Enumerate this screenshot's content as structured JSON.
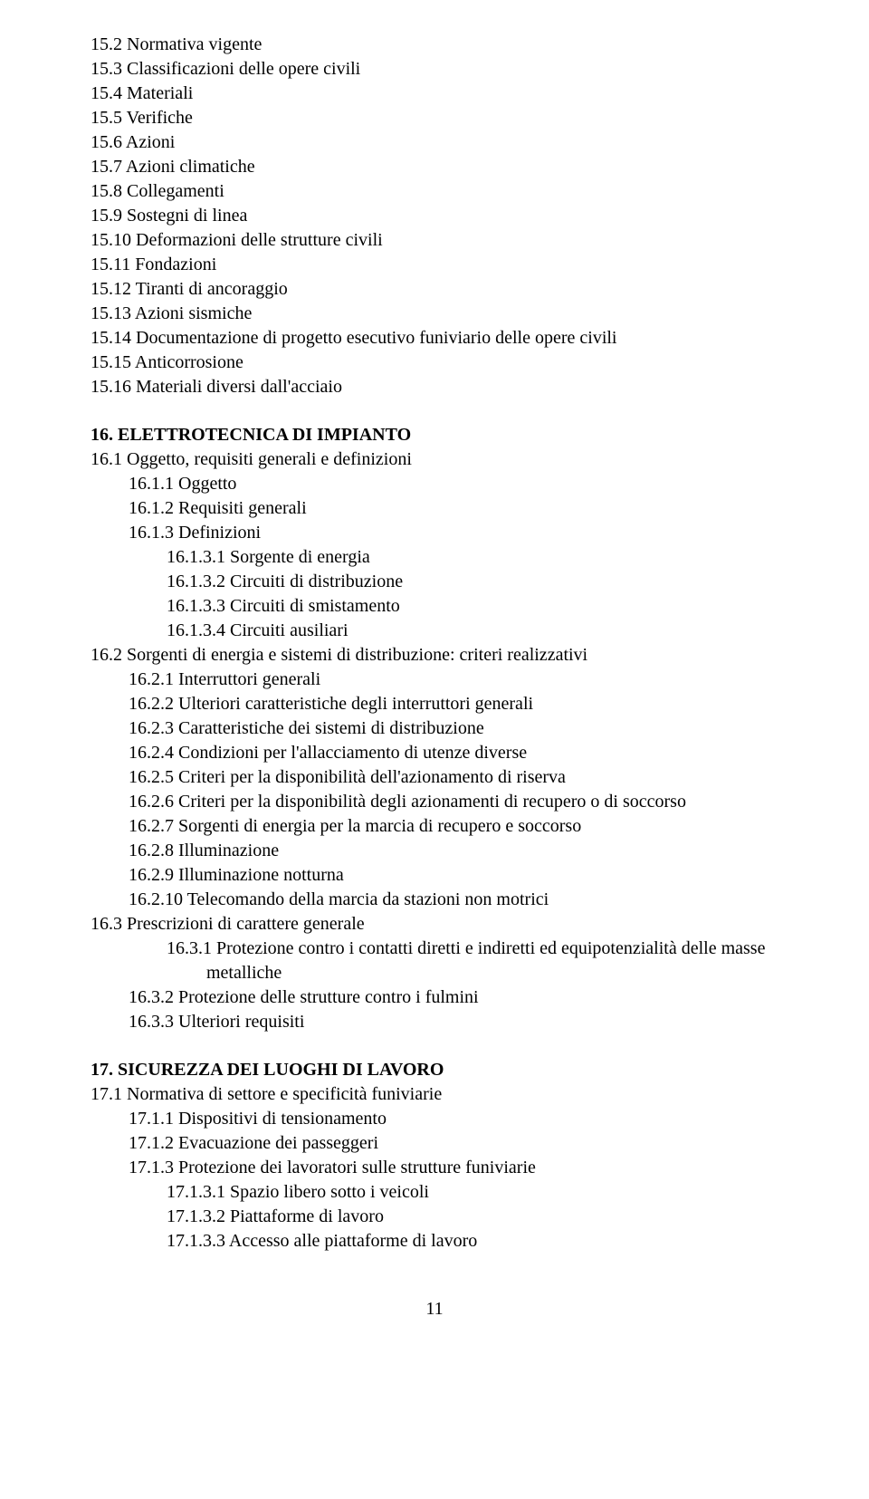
{
  "s15": {
    "items": [
      "15.2 Normativa vigente",
      "15.3 Classificazioni delle opere civili",
      "15.4 Materiali",
      "15.5 Verifiche",
      "15.6 Azioni",
      "15.7 Azioni climatiche",
      "15.8 Collegamenti",
      "15.9 Sostegni di linea",
      "15.10 Deformazioni delle strutture civili",
      "15.11 Fondazioni",
      "15.12 Tiranti di ancoraggio",
      "15.13 Azioni sismiche",
      "15.14 Documentazione di progetto esecutivo funiviario delle opere civili",
      "15.15 Anticorrosione",
      "15.16 Materiali diversi dall'acciaio"
    ]
  },
  "s16": {
    "heading": "16. ELETTROTECNICA DI IMPIANTO",
    "g1": {
      "title": "16.1 Oggetto, requisiti generali e definizioni",
      "sub": {
        "a": "16.1.1 Oggetto",
        "b": "16.1.2 Requisiti generali",
        "c": "16.1.3 Definizioni",
        "c1": "16.1.3.1 Sorgente di energia",
        "c2": "16.1.3.2 Circuiti di distribuzione",
        "c3": "16.1.3.3 Circuiti di smistamento",
        "c4": "16.1.3.4 Circuiti ausiliari"
      }
    },
    "g2": {
      "title": "16.2 Sorgenti di energia e sistemi di distribuzione: criteri realizzativi",
      "sub": {
        "a": "16.2.1 Interruttori generali",
        "b": "16.2.2 Ulteriori caratteristiche degli interruttori generali",
        "c": "16.2.3 Caratteristiche dei sistemi di distribuzione",
        "d": "16.2.4 Condizioni per l'allacciamento di utenze diverse",
        "e": "16.2.5 Criteri per la disponibilità dell'azionamento di riserva",
        "f": "16.2.6 Criteri per la disponibilità degli azionamenti di recupero o di soccorso",
        "g": "16.2.7 Sorgenti di energia per la marcia di recupero e soccorso",
        "h": "16.2.8 Illuminazione",
        "i": "16.2.9 Illuminazione notturna",
        "j": "16.2.10 Telecomando della marcia da stazioni non motrici"
      }
    },
    "g3": {
      "title": "16.3 Prescrizioni di carattere generale",
      "sub": {
        "a": "16.3.1 Protezione contro i contatti diretti e indiretti ed equipotenzialità delle masse metalliche",
        "b": "16.3.2 Protezione delle strutture contro i fulmini",
        "c": "16.3.3 Ulteriori requisiti"
      }
    }
  },
  "s17": {
    "heading": "17. SICUREZZA DEI LUOGHI DI LAVORO",
    "g1": {
      "title": "17.1 Normativa di settore e specificità funiviarie",
      "sub": {
        "a": "17.1.1 Dispositivi di tensionamento",
        "b": "17.1.2 Evacuazione dei passeggeri",
        "c": "17.1.3 Protezione dei lavoratori sulle strutture funiviarie",
        "c1": "17.1.3.1 Spazio libero sotto i veicoli",
        "c2": "17.1.3.2 Piattaforme di lavoro",
        "c3": "17.1.3.3 Accesso alle piattaforme di lavoro"
      }
    }
  },
  "pagenum": "11"
}
